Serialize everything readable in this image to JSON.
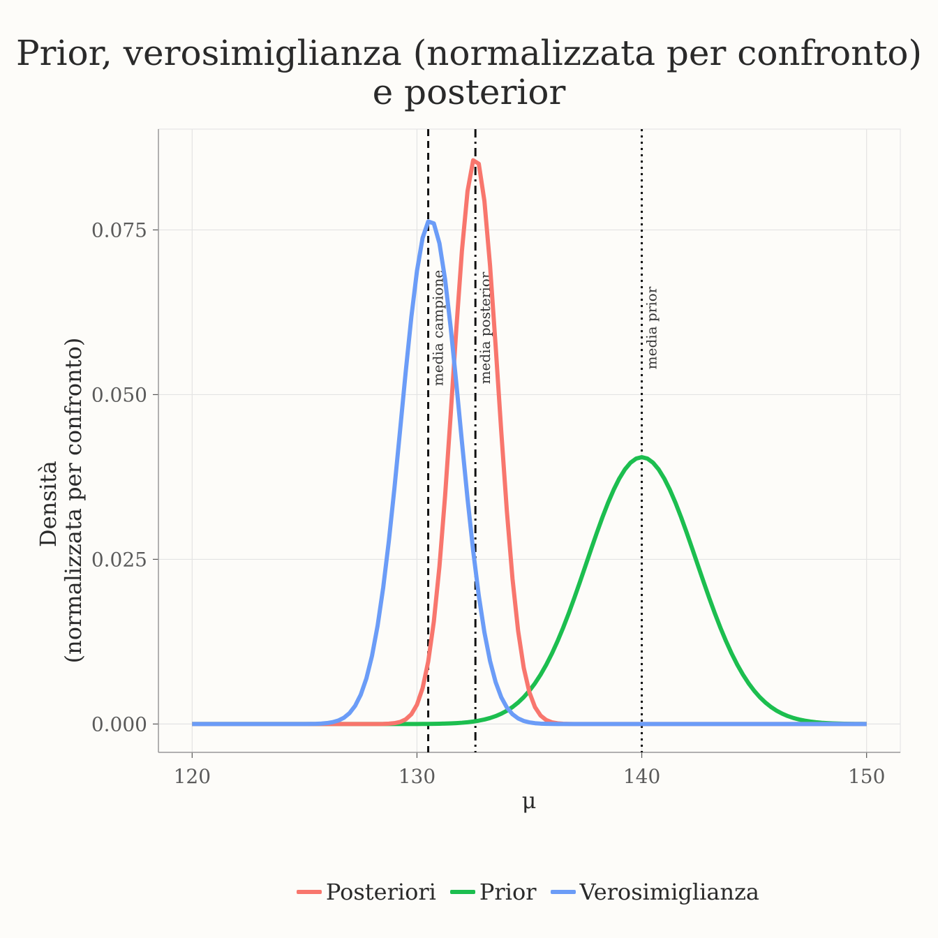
{
  "chart_data": {
    "type": "line",
    "title_lines": [
      "Prior, verosimiglianza (normalizzata per confronto)",
      "e posterior"
    ],
    "xlabel": "μ",
    "ylabel_lines": [
      "Densità",
      "(normalizzata per confronto)"
    ],
    "xlim": [
      118.5,
      151.5
    ],
    "ylim": [
      -0.0043,
      0.0903
    ],
    "x_ticks": [
      120,
      130,
      140,
      150
    ],
    "x_tick_labels": [
      "120",
      "130",
      "140",
      "150"
    ],
    "y_ticks": [
      0.0,
      0.025,
      0.05,
      0.075
    ],
    "y_tick_labels": [
      "0.000",
      "0.025",
      "0.050",
      "0.075"
    ],
    "grid": true,
    "legend_position": "bottom",
    "series": [
      {
        "name": "Posteriori",
        "color": "#f8766d",
        "mean": 132.6,
        "sd": 1.0,
        "peak": 0.086
      },
      {
        "name": "Prior",
        "color": "#1cbe4f",
        "mean": 140.0,
        "sd": 2.45,
        "peak": 0.0405
      },
      {
        "name": "Verosimiglianza",
        "color": "#6b9cf7",
        "mean": 130.6,
        "sd": 1.3,
        "peak": 0.0765
      }
    ],
    "x_range": [
      120,
      150
    ],
    "vlines": [
      {
        "x": 130.5,
        "label": "media campione",
        "style": "dashed"
      },
      {
        "x": 132.6,
        "label": "media posterior",
        "style": "dashdot"
      },
      {
        "x": 140.0,
        "label": "media prior",
        "style": "dotted"
      }
    ]
  }
}
